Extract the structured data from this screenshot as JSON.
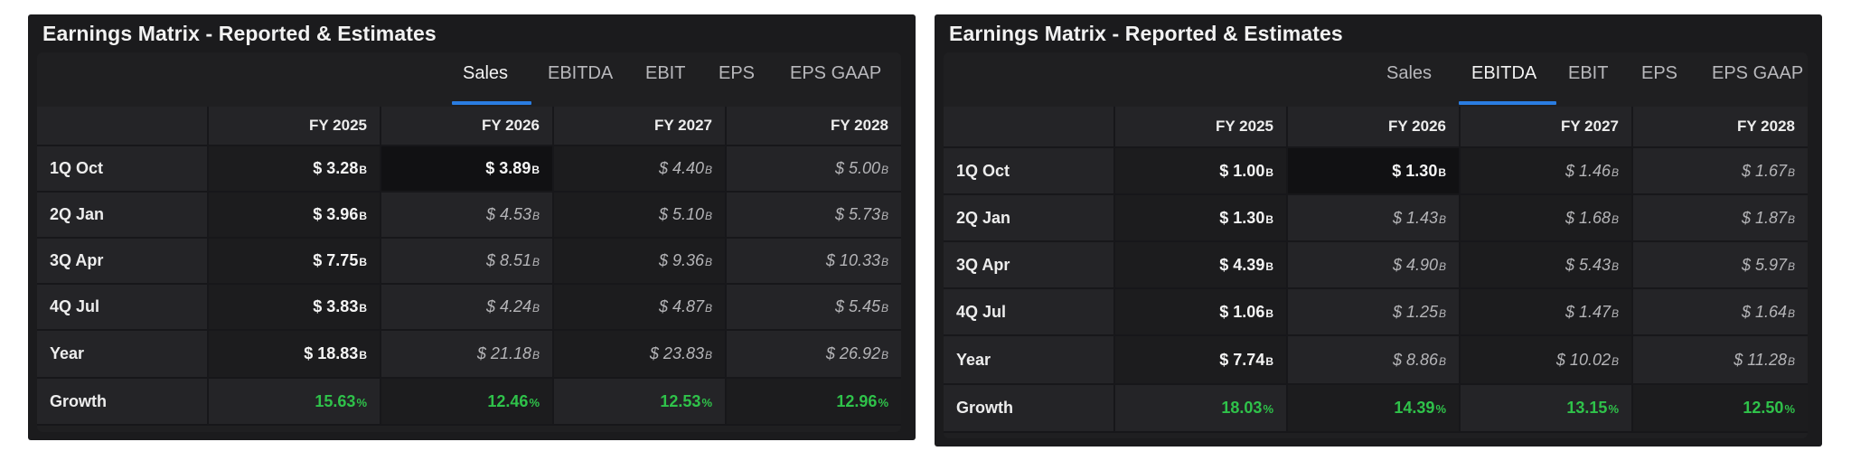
{
  "panels": [
    {
      "title": "Earnings Matrix - Reported & Estimates",
      "tabs": [
        "Sales",
        "EBITDA",
        "EBIT",
        "EPS",
        "EPS GAAP"
      ],
      "active_tab": 0,
      "columns": [
        "FY 2025",
        "FY 2026",
        "FY 2027",
        "FY 2028"
      ],
      "rows": [
        {
          "label": "1Q Oct",
          "cells": [
            {
              "v": "$ 3.28",
              "u": "B",
              "t": "rep"
            },
            {
              "v": "$ 3.89",
              "u": "B",
              "t": "rep"
            },
            {
              "v": "$ 4.40",
              "u": "B",
              "t": "est"
            },
            {
              "v": "$ 5.00",
              "u": "B",
              "t": "est"
            }
          ]
        },
        {
          "label": "2Q Jan",
          "cells": [
            {
              "v": "$ 3.96",
              "u": "B",
              "t": "rep"
            },
            {
              "v": "$ 4.53",
              "u": "B",
              "t": "est"
            },
            {
              "v": "$ 5.10",
              "u": "B",
              "t": "est"
            },
            {
              "v": "$ 5.73",
              "u": "B",
              "t": "est"
            }
          ]
        },
        {
          "label": "3Q Apr",
          "cells": [
            {
              "v": "$ 7.75",
              "u": "B",
              "t": "rep"
            },
            {
              "v": "$ 8.51",
              "u": "B",
              "t": "est"
            },
            {
              "v": "$ 9.36",
              "u": "B",
              "t": "est"
            },
            {
              "v": "$ 10.33",
              "u": "B",
              "t": "est"
            }
          ]
        },
        {
          "label": "4Q Jul",
          "cells": [
            {
              "v": "$ 3.83",
              "u": "B",
              "t": "rep"
            },
            {
              "v": "$ 4.24",
              "u": "B",
              "t": "est"
            },
            {
              "v": "$ 4.87",
              "u": "B",
              "t": "est"
            },
            {
              "v": "$ 5.45",
              "u": "B",
              "t": "est"
            }
          ]
        },
        {
          "label": "Year",
          "cells": [
            {
              "v": "$ 18.83",
              "u": "B",
              "t": "rep"
            },
            {
              "v": "$ 21.18",
              "u": "B",
              "t": "est"
            },
            {
              "v": "$ 23.83",
              "u": "B",
              "t": "est"
            },
            {
              "v": "$ 26.92",
              "u": "B",
              "t": "est"
            }
          ]
        },
        {
          "label": "Growth",
          "cells": [
            {
              "v": "15.63",
              "u": "%",
              "t": "grow"
            },
            {
              "v": "12.46",
              "u": "%",
              "t": "grow"
            },
            {
              "v": "12.53",
              "u": "%",
              "t": "grow"
            },
            {
              "v": "12.96",
              "u": "%",
              "t": "grow"
            }
          ]
        }
      ]
    },
    {
      "title": "Earnings Matrix - Reported & Estimates",
      "tabs": [
        "Sales",
        "EBITDA",
        "EBIT",
        "EPS",
        "EPS GAAP"
      ],
      "active_tab": 1,
      "columns": [
        "FY 2025",
        "FY 2026",
        "FY 2027",
        "FY 2028"
      ],
      "rows": [
        {
          "label": "1Q Oct",
          "cells": [
            {
              "v": "$ 1.00",
              "u": "B",
              "t": "rep"
            },
            {
              "v": "$ 1.30",
              "u": "B",
              "t": "rep"
            },
            {
              "v": "$ 1.46",
              "u": "B",
              "t": "est"
            },
            {
              "v": "$ 1.67",
              "u": "B",
              "t": "est"
            }
          ]
        },
        {
          "label": "2Q Jan",
          "cells": [
            {
              "v": "$ 1.30",
              "u": "B",
              "t": "rep"
            },
            {
              "v": "$ 1.43",
              "u": "B",
              "t": "est"
            },
            {
              "v": "$ 1.68",
              "u": "B",
              "t": "est"
            },
            {
              "v": "$ 1.87",
              "u": "B",
              "t": "est"
            }
          ]
        },
        {
          "label": "3Q Apr",
          "cells": [
            {
              "v": "$ 4.39",
              "u": "B",
              "t": "rep"
            },
            {
              "v": "$ 4.90",
              "u": "B",
              "t": "est"
            },
            {
              "v": "$ 5.43",
              "u": "B",
              "t": "est"
            },
            {
              "v": "$ 5.97",
              "u": "B",
              "t": "est"
            }
          ]
        },
        {
          "label": "4Q Jul",
          "cells": [
            {
              "v": "$ 1.06",
              "u": "B",
              "t": "rep"
            },
            {
              "v": "$ 1.25",
              "u": "B",
              "t": "est"
            },
            {
              "v": "$ 1.47",
              "u": "B",
              "t": "est"
            },
            {
              "v": "$ 1.64",
              "u": "B",
              "t": "est"
            }
          ]
        },
        {
          "label": "Year",
          "cells": [
            {
              "v": "$ 7.74",
              "u": "B",
              "t": "rep"
            },
            {
              "v": "$ 8.86",
              "u": "B",
              "t": "est"
            },
            {
              "v": "$ 10.02",
              "u": "B",
              "t": "est"
            },
            {
              "v": "$ 11.28",
              "u": "B",
              "t": "est"
            }
          ]
        },
        {
          "label": "Growth",
          "cells": [
            {
              "v": "18.03",
              "u": "%",
              "t": "grow"
            },
            {
              "v": "14.39",
              "u": "%",
              "t": "grow"
            },
            {
              "v": "13.15",
              "u": "%",
              "t": "grow"
            },
            {
              "v": "12.50",
              "u": "%",
              "t": "grow"
            }
          ]
        }
      ]
    }
  ],
  "colors": {
    "panel_bg": "#1b1b1d",
    "card_bg": "#1f1f21",
    "active_underline": "#2a7de1",
    "growth_text": "#2fc24a",
    "reported_text": "#f5f5f5",
    "estimate_text": "#b5b5b8"
  }
}
